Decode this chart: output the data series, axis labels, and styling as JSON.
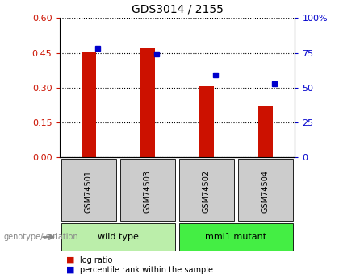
{
  "title": "GDS3014 / 2155",
  "samples": [
    "GSM74501",
    "GSM74503",
    "GSM74502",
    "GSM74504"
  ],
  "log_ratios": [
    0.455,
    0.47,
    0.305,
    0.22
  ],
  "percentile_ranks": [
    0.47,
    0.445,
    0.355,
    0.315
  ],
  "groups": [
    {
      "label": "wild type",
      "indices": [
        0,
        1
      ],
      "color": "#bbeeaa"
    },
    {
      "label": "mmi1 mutant",
      "indices": [
        2,
        3
      ],
      "color": "#44ee44"
    }
  ],
  "bar_color": "#cc1100",
  "dot_color": "#0000cc",
  "left_yticks": [
    0,
    0.15,
    0.3,
    0.45,
    0.6
  ],
  "right_yticks": [
    0,
    25,
    50,
    75,
    100
  ],
  "ylim_left": [
    0,
    0.6
  ],
  "ylim_right": [
    0,
    100
  ],
  "legend_log_ratio": "log ratio",
  "legend_percentile": "percentile rank within the sample",
  "genotype_label": "genotype/variation",
  "sample_box_color": "#cccccc",
  "bar_width": 0.25
}
